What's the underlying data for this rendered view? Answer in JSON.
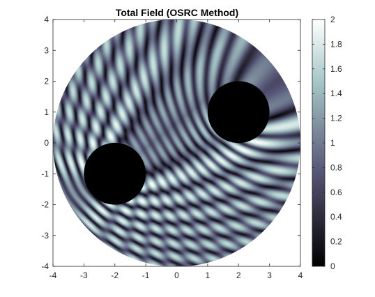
{
  "chart_data": {
    "type": "heatmap",
    "title": "Total Field (OSRC Method)",
    "xlabel": "",
    "ylabel": "",
    "xlim": [
      -4,
      4
    ],
    "ylim": [
      -4,
      4
    ],
    "x_ticks": [
      -4,
      -3,
      -2,
      -1,
      0,
      1,
      2,
      3,
      4
    ],
    "y_ticks": [
      -4,
      -3,
      -2,
      -1,
      0,
      1,
      2,
      3,
      4
    ],
    "x_tick_labels": [
      "-4",
      "-3",
      "-2",
      "-1",
      "0",
      "1",
      "2",
      "3",
      "4"
    ],
    "y_tick_labels": [
      "-4",
      "-3",
      "-2",
      "-1",
      "0",
      "1",
      "2",
      "3",
      "4"
    ],
    "domain": {
      "shape": "disk",
      "center": [
        0,
        0
      ],
      "radius": 4
    },
    "scatterers": [
      {
        "shape": "disk",
        "center": [
          -2,
          -1
        ],
        "radius": 1
      },
      {
        "shape": "disk",
        "center": [
          2,
          1
        ],
        "radius": 1
      }
    ],
    "colorbar": {
      "min": 0,
      "max": 2,
      "ticks": [
        0,
        0.2,
        0.4,
        0.6,
        0.8,
        1,
        1.2,
        1.4,
        1.6,
        1.8,
        2
      ],
      "tick_labels": [
        "0",
        "0.2",
        "0.4",
        "0.6",
        "0.8",
        "1",
        "1.2",
        "1.4",
        "1.6",
        "1.8",
        "2"
      ],
      "colormap": "bone"
    },
    "grid": false
  }
}
